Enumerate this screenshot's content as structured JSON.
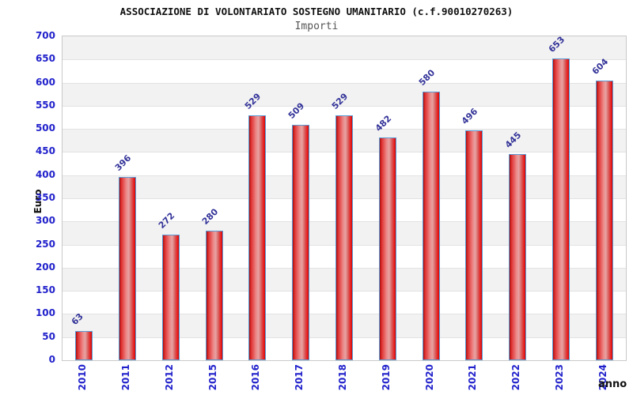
{
  "chart_data": {
    "type": "bar",
    "title": "ASSOCIAZIONE DI VOLONTARIATO SOSTEGNO UMANITARIO (c.f.90010270263)",
    "subtitle": "Importi",
    "xlabel": "anno",
    "ylabel": "Euro",
    "categories": [
      "2010",
      "2011",
      "2012",
      "2015",
      "2016",
      "2017",
      "2018",
      "2019",
      "2020",
      "2021",
      "2022",
      "2023",
      "2024"
    ],
    "values": [
      63,
      396,
      272,
      280,
      529,
      509,
      529,
      482,
      580,
      496,
      445,
      653,
      604
    ],
    "ylim": [
      0,
      700
    ],
    "ytick_step": 50,
    "grid": "horizontal-alternating-bands",
    "legend": "none",
    "colors": {
      "bar_border": "#5b9bd5",
      "bar_red": "#e01818",
      "bar_highlight": "#e7a3a3",
      "tick_label": "#2222cc",
      "value_label": "#333399",
      "band_gray": "#f2f2f2",
      "band_white": "#ffffff",
      "grid_line": "#e2e2e2",
      "plot_border": "#c9c9c9",
      "title_color": "#111111",
      "subtitle_color": "#555555"
    }
  }
}
